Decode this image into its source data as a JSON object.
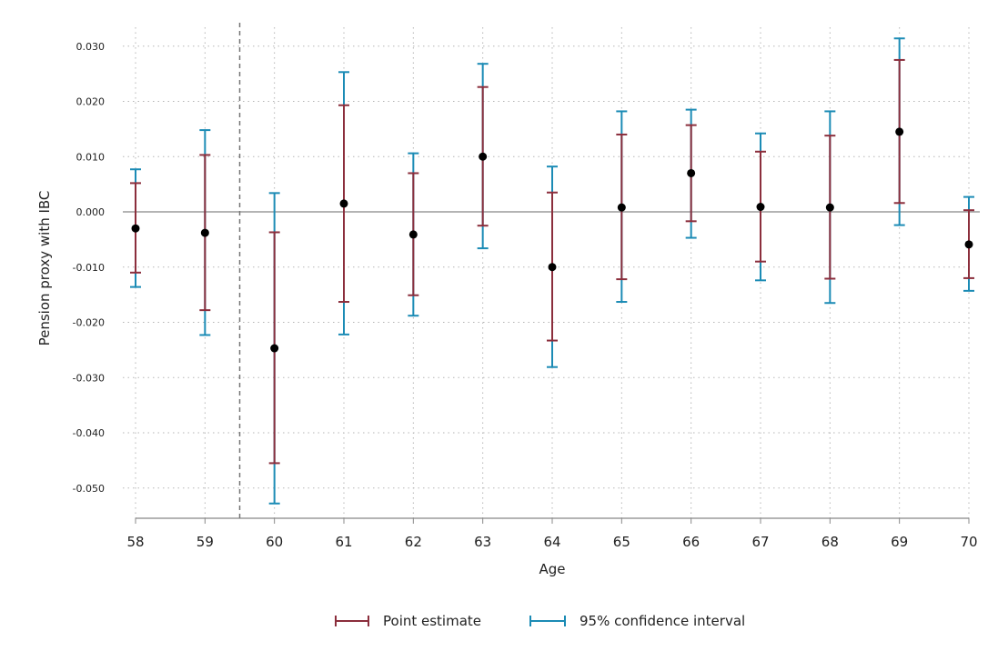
{
  "chart_data": {
    "type": "errorbar",
    "xlabel": "Age",
    "ylabel": "Pension proxy with IBC",
    "ylim": [
      -0.055,
      0.033
    ],
    "xlim": [
      58,
      70
    ],
    "yticks": [
      0.03,
      0.02,
      0.01,
      0.0,
      -0.01,
      -0.02,
      -0.03,
      -0.04,
      -0.05
    ],
    "ytick_labels": [
      "0.030",
      "0.020",
      "0.010",
      "0.000",
      "-0.010",
      "-0.020",
      "-0.030",
      "-0.040",
      "-0.050"
    ],
    "categories": [
      "58",
      "59",
      "60",
      "61",
      "62",
      "63",
      "64",
      "65",
      "66",
      "67",
      "68",
      "69",
      "70"
    ],
    "x": [
      58,
      59,
      60,
      61,
      62,
      63,
      64,
      65,
      66,
      67,
      68,
      69,
      70
    ],
    "estimate": [
      -0.003,
      -0.0038,
      -0.0247,
      0.0015,
      -0.0041,
      0.01,
      -0.01,
      0.0008,
      0.007,
      0.0009,
      0.0008,
      0.0145,
      -0.0059
    ],
    "point_estimate_range": {
      "low": [
        -0.011,
        -0.0178,
        -0.0455,
        -0.0163,
        -0.0151,
        -0.0025,
        -0.0233,
        -0.0122,
        -0.0017,
        -0.009,
        -0.0121,
        0.0016,
        -0.012
      ],
      "high": [
        0.0052,
        0.0103,
        -0.0037,
        0.0193,
        0.007,
        0.0226,
        0.0035,
        0.014,
        0.0157,
        0.0109,
        0.0138,
        0.0275,
        0.0003
      ]
    },
    "ci95": {
      "low": [
        -0.0136,
        -0.0223,
        -0.0528,
        -0.0222,
        -0.0188,
        -0.0066,
        -0.0281,
        -0.0163,
        -0.0047,
        -0.0124,
        -0.0165,
        -0.0024,
        -0.0143
      ],
      "high": [
        0.0077,
        0.0148,
        0.0034,
        0.0253,
        0.0106,
        0.0268,
        0.0082,
        0.0182,
        0.0185,
        0.0142,
        0.0182,
        0.0314,
        0.0027
      ]
    },
    "reference_line_x": 59.5,
    "zero_line": 0,
    "grid": true,
    "legend": {
      "position": "bottom",
      "entries": [
        {
          "label": "Point estimate",
          "color": "#8b2e3c"
        },
        {
          "label": "95% confidence interval",
          "color": "#1b8bb5"
        }
      ]
    },
    "colors": {
      "estimate_bar": "#8b2e3c",
      "ci_bar": "#1b8bb5",
      "marker": "#000000",
      "grid": "#b5b5b5",
      "reference_line": "#777777"
    }
  }
}
